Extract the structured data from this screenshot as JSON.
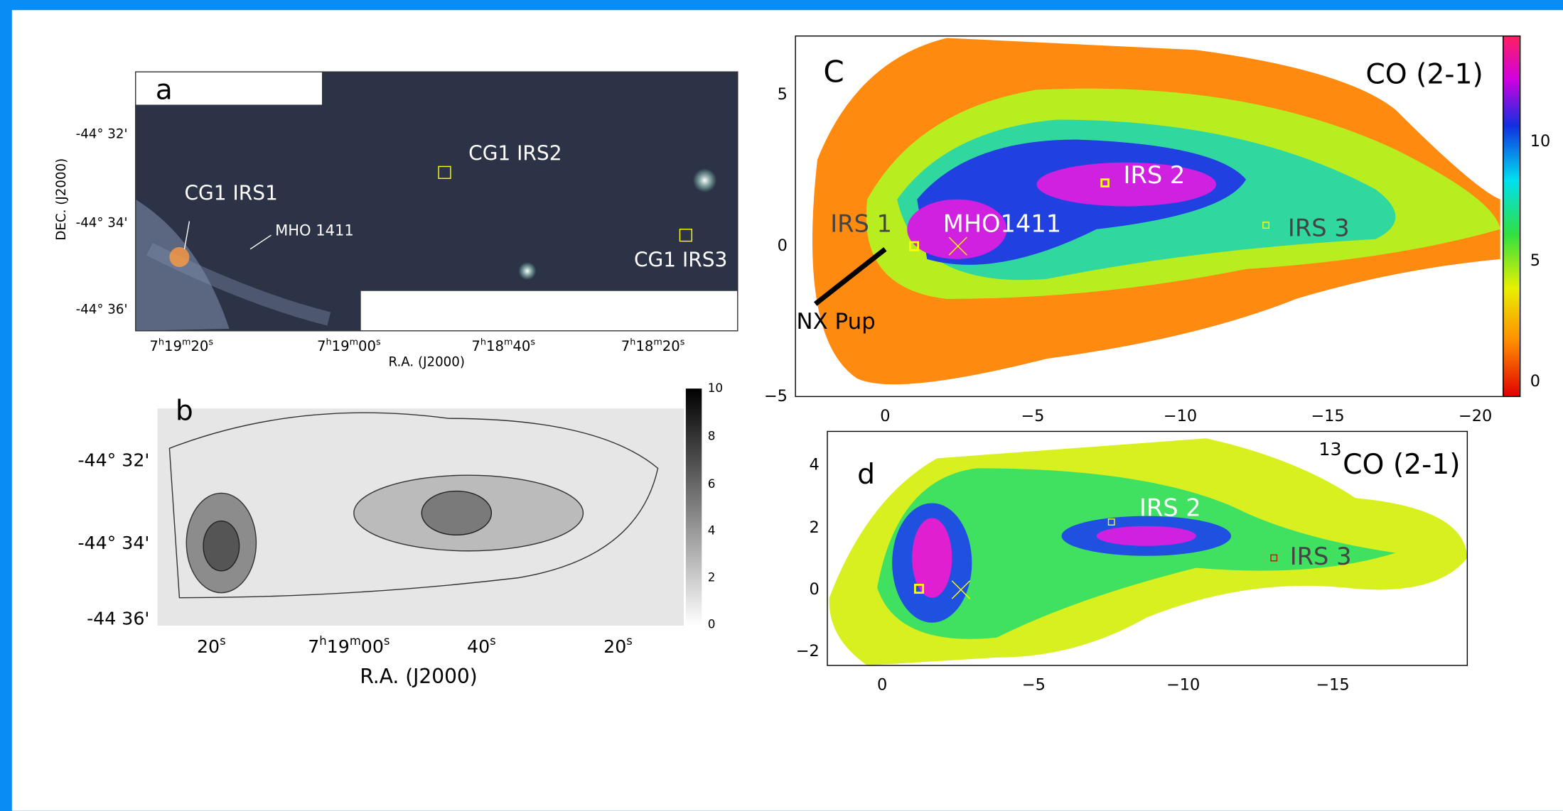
{
  "panels": {
    "a": {
      "label": "a",
      "y_label": "DEC. (J2000)",
      "y_ticks": [
        "-44° 32'",
        "-44° 34'",
        "-44° 36'"
      ],
      "x_ticks": [
        [
          "7",
          "h",
          "19",
          "m",
          "20",
          "s"
        ],
        [
          "7",
          "h",
          "19",
          "m",
          "00",
          "s"
        ],
        [
          "7",
          "h",
          "18",
          "m",
          "40",
          "s"
        ],
        [
          "7",
          "h",
          "18",
          "m",
          "20",
          "s"
        ]
      ],
      "x_label": "R.A. (J2000)",
      "annotations": [
        "CG1 IRS1",
        "CG1 IRS2",
        "CG1 IRS3",
        "MHO 1411"
      ]
    },
    "b": {
      "label": "b",
      "y_ticks": [
        "-44° 32'",
        "-44° 34'",
        "-44 36'"
      ],
      "x_ticks": [
        [
          "20",
          "s"
        ],
        [
          "7",
          "h",
          "19",
          "m",
          "00",
          "s"
        ],
        [
          "40",
          "s"
        ],
        [
          "20",
          "s"
        ]
      ],
      "x_label": "R.A.  (J2000)",
      "colorbar_ticks": [
        "10",
        "8",
        "6",
        "4",
        "2",
        "0"
      ]
    },
    "c": {
      "label": "C",
      "title": "CO (2-1)",
      "y_ticks": [
        "5",
        "0",
        "−5"
      ],
      "x_ticks": [
        "0",
        "−5",
        "−10",
        "−15",
        "−20"
      ],
      "colorbar_ticks": [
        "10",
        "5",
        "0"
      ],
      "annotations": [
        "IRS 1",
        "MHO1411",
        "IRS 2",
        "IRS 3",
        "NX Pup"
      ]
    },
    "d": {
      "label": "d",
      "title_superscript": "13",
      "title": "CO (2-1)",
      "y_ticks": [
        "4",
        "2",
        "0",
        "−2"
      ],
      "x_ticks": [
        "0",
        "−5",
        "−10",
        "−15"
      ],
      "annotations": [
        "IRS 2",
        "IRS 3"
      ]
    }
  }
}
